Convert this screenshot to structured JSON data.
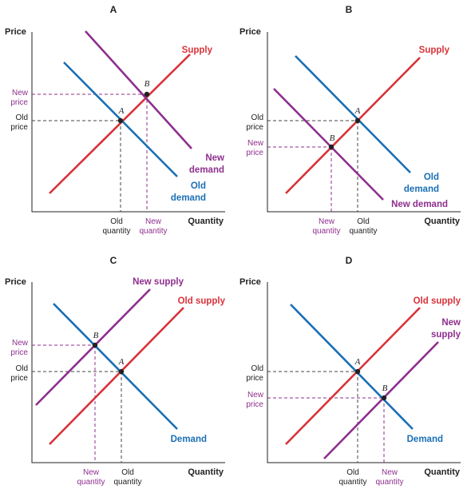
{
  "colors": {
    "supply": "#d8333a",
    "demand": "#1a6fb5",
    "new": "#8e2f8e",
    "text": "#222222",
    "axis": "#222222",
    "guide": "#444444"
  },
  "axis_labels": {
    "y": "Price",
    "x": "Quantity"
  },
  "panels": {
    "A": {
      "title": "A",
      "supply_label": "Supply",
      "new_demand_label": [
        "New",
        "demand"
      ],
      "old_demand_label": [
        "Old",
        "demand"
      ],
      "new_price": [
        "New",
        "price"
      ],
      "old_price": [
        "Old",
        "price"
      ],
      "old_quantity": [
        "Old",
        "quantity"
      ],
      "new_quantity": [
        "New",
        "quantity"
      ],
      "point_old": "A",
      "point_new": "B"
    },
    "B": {
      "title": "B",
      "supply_label": "Supply",
      "old_demand_label": [
        "Old",
        "demand"
      ],
      "new_demand_label": [
        "New demand"
      ],
      "old_price": [
        "Old",
        "price"
      ],
      "new_price": [
        "New",
        "price"
      ],
      "new_quantity": [
        "New",
        "quantity"
      ],
      "old_quantity": [
        "Old",
        "quantity"
      ],
      "point_old": "A",
      "point_new": "B"
    },
    "C": {
      "title": "C",
      "new_supply_label": "New supply",
      "old_supply_label": "Old supply",
      "demand_label": "Demand",
      "new_price": [
        "New",
        "price"
      ],
      "old_price": [
        "Old",
        "price"
      ],
      "new_quantity": [
        "New",
        "quantity"
      ],
      "old_quantity": [
        "Old",
        "quantity"
      ],
      "point_old": "A",
      "point_new": "B"
    },
    "D": {
      "title": "D",
      "old_supply_label": "Old supply",
      "new_supply_label": [
        "New",
        "supply"
      ],
      "demand_label": "Demand",
      "old_price": [
        "Old",
        "price"
      ],
      "new_price": [
        "New",
        "price"
      ],
      "old_quantity": [
        "Old",
        "quantity"
      ],
      "new_quantity": [
        "New",
        "quantity"
      ],
      "point_old": "A",
      "point_new": "B"
    }
  }
}
